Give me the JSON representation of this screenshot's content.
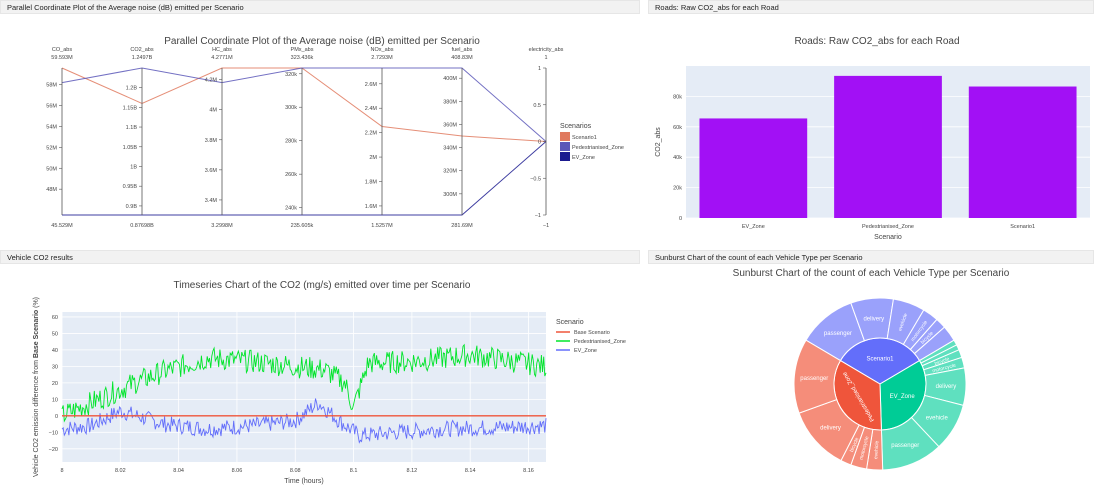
{
  "panels": {
    "parallel_tab": "Parallel Coordinate Plot of the Average noise (dB) emitted per Scenario",
    "bar_tab": "Roads: Raw CO2_abs for each Road",
    "ts_tab": "Vehicle CO2 results",
    "sun_tab": "Sunburst Chart of the count of each Vehicle Type per Scenario"
  },
  "colors": {
    "Scenario1": "#e07a5f",
    "Pedestrianised_Zone": "#5b57b8",
    "EV_Zone": "#1b1a8f",
    "bar": "#a210f5",
    "base": "#ef553b",
    "ped_line": "#00e52a",
    "ev_line": "#636efa",
    "plot_bg": "#e5ecf6"
  },
  "chart_data": [
    {
      "type": "parallel",
      "title": "Parallel Coordinate Plot of the Average noise (dB) emitted per Scenario",
      "legend_title": "Scenarios",
      "legend": [
        "Scenario1",
        "Pedestrianised_Zone",
        "EV_Zone"
      ],
      "axes": [
        {
          "name": "CO_abs",
          "top": "59.593M",
          "bottom": "45.529M",
          "range": [
            45.529,
            59.593
          ],
          "ticks": [
            "58M",
            "56M",
            "54M",
            "52M",
            "50M",
            "48M"
          ],
          "tick_values": [
            58,
            56,
            54,
            52,
            50,
            48
          ]
        },
        {
          "name": "CO2_abs",
          "top": "1.2497B",
          "bottom": "0.87698B",
          "range": [
            0.87698,
            1.2497
          ],
          "ticks": [
            "1.2B",
            "1.15B",
            "1.1B",
            "1.05B",
            "1B",
            "0.95B",
            "0.9B"
          ],
          "tick_values": [
            1.2,
            1.15,
            1.1,
            1.05,
            1.0,
            0.95,
            0.9
          ]
        },
        {
          "name": "HC_abs",
          "top": "4.2771M",
          "bottom": "3.2998M",
          "range": [
            3.2998,
            4.2771
          ],
          "ticks": [
            "4.2M",
            "4M",
            "3.8M",
            "3.6M",
            "3.4M"
          ],
          "tick_values": [
            4.2,
            4.0,
            3.8,
            3.6,
            3.4
          ]
        },
        {
          "name": "PMx_abs",
          "top": "323.436k",
          "bottom": "235.605k",
          "range": [
            235.605,
            323.436
          ],
          "ticks": [
            "320k",
            "300k",
            "280k",
            "260k",
            "240k"
          ],
          "tick_values": [
            320,
            300,
            280,
            260,
            240
          ]
        },
        {
          "name": "NOx_abs",
          "top": "2.7293M",
          "bottom": "1.5257M",
          "range": [
            1.5257,
            2.7293
          ],
          "ticks": [
            "2.6M",
            "2.4M",
            "2.2M",
            "2M",
            "1.8M",
            "1.6M"
          ],
          "tick_values": [
            2.6,
            2.4,
            2.2,
            2.0,
            1.8,
            1.6
          ]
        },
        {
          "name": "fuel_abs",
          "top": "408.83M",
          "bottom": "281.69M",
          "range": [
            281.69,
            408.83
          ],
          "ticks": [
            "400M",
            "380M",
            "360M",
            "340M",
            "320M",
            "300M"
          ],
          "tick_values": [
            400,
            380,
            360,
            340,
            320,
            300
          ]
        },
        {
          "name": "electricity_abs",
          "top": "1",
          "bottom": "−1",
          "range": [
            -1,
            1
          ],
          "ticks": [
            "1",
            "0.5",
            "0",
            "−0.5",
            "−1"
          ],
          "tick_values": [
            1,
            0.5,
            0,
            -0.5,
            -1
          ]
        }
      ],
      "series": [
        {
          "name": "Scenario1",
          "values": [
            59.593,
            1.16,
            4.2771,
            323.436,
            2.25,
            350,
            0
          ]
        },
        {
          "name": "Pedestrianised_Zone",
          "values": [
            58.2,
            1.2497,
            4.18,
            323.436,
            2.7293,
            408.83,
            0
          ]
        },
        {
          "name": "EV_Zone",
          "values": [
            45.529,
            0.87698,
            3.2998,
            235.605,
            1.5257,
            281.69,
            0
          ]
        }
      ]
    },
    {
      "type": "bar",
      "title": "Roads: Raw CO2_abs for each Road",
      "xlabel": "Scenario",
      "ylabel": "CO2_abs",
      "categories": [
        "EV_Zone",
        "Pedestrianised_Zone",
        "Scenario1"
      ],
      "values": [
        65500,
        93500,
        86500
      ],
      "ylim": [
        0,
        100000
      ],
      "yticks": [
        0,
        20000,
        40000,
        60000,
        80000
      ],
      "ytick_labels": [
        "0",
        "20k",
        "40k",
        "60k",
        "80k"
      ]
    },
    {
      "type": "line",
      "title": "Timeseries Chart of the CO2 (mg/s) emitted over time per Scenario",
      "xlabel": "Time (hours)",
      "ylabel_prefix": "Vehicle CO2 emission difference from ",
      "ylabel_bold": "Base Scenario",
      "ylabel_suffix": " (%)",
      "legend_title": "Scenario",
      "xlim": [
        8,
        8.166
      ],
      "ylim": [
        -28,
        63
      ],
      "xticks": [
        8,
        8.02,
        8.04,
        8.06,
        8.08,
        8.1,
        8.12,
        8.14,
        8.16
      ],
      "xtick_labels": [
        "8",
        "8.02",
        "8.04",
        "8.06",
        "8.08",
        "8.1",
        "8.12",
        "8.14",
        "8.16"
      ],
      "yticks": [
        -20,
        -10,
        0,
        10,
        20,
        30,
        40,
        50,
        60
      ],
      "ytick_labels": [
        "−20",
        "−10",
        "0",
        "10",
        "20",
        "30",
        "40",
        "50",
        "60"
      ],
      "series": [
        {
          "name": "Base Scenario",
          "anchors": [
            [
              8,
              0
            ],
            [
              8.166,
              0
            ]
          ],
          "noise": 0
        },
        {
          "name": "Pedestrianised_Zone",
          "anchors": [
            [
              8,
              0
            ],
            [
              8.01,
              8
            ],
            [
              8.025,
              20
            ],
            [
              8.035,
              27
            ],
            [
              8.05,
              35
            ],
            [
              8.065,
              33
            ],
            [
              8.08,
              30
            ],
            [
              8.09,
              28
            ],
            [
              8.097,
              20
            ],
            [
              8.1,
              5
            ],
            [
              8.105,
              32
            ],
            [
              8.12,
              33
            ],
            [
              8.14,
              37
            ],
            [
              8.155,
              33
            ],
            [
              8.166,
              30
            ]
          ],
          "noise": 7
        },
        {
          "name": "EV_Zone",
          "anchors": [
            [
              8,
              -8
            ],
            [
              8.01,
              -6
            ],
            [
              8.02,
              3
            ],
            [
              8.035,
              -5
            ],
            [
              8.05,
              -8
            ],
            [
              8.065,
              -6
            ],
            [
              8.08,
              -3
            ],
            [
              8.088,
              8
            ],
            [
              8.095,
              -3
            ],
            [
              8.102,
              -12
            ],
            [
              8.115,
              -10
            ],
            [
              8.13,
              -8
            ],
            [
              8.15,
              -7
            ],
            [
              8.166,
              -6
            ]
          ],
          "noise": 5
        }
      ]
    },
    {
      "type": "sunburst",
      "title": "Sunburst Chart of the count of each Vehicle Type per Scenario",
      "inner": [
        {
          "name": "Scenario1",
          "value": 33
        },
        {
          "name": "EV_Zone",
          "value": 33
        },
        {
          "name": "Pedestrianised_Zone",
          "value": 34
        }
      ],
      "outer": [
        {
          "parent": "Scenario1",
          "label": "passenger",
          "value": 11
        },
        {
          "parent": "Scenario1",
          "label": "delivery",
          "value": 8
        },
        {
          "parent": "Scenario1",
          "label": "evehicle",
          "value": 6
        },
        {
          "parent": "Scenario1",
          "label": "motorcycle",
          "value": 3
        },
        {
          "parent": "Scenario1",
          "label": "bicycle",
          "value": 2
        },
        {
          "parent": "Scenario1",
          "label": "",
          "value": 3
        },
        {
          "parent": "EV_Zone",
          "label": "",
          "value": 1
        },
        {
          "parent": "EV_Zone",
          "label": "",
          "value": 1
        },
        {
          "parent": "EV_Zone",
          "label": "bicycle",
          "value": 1.5
        },
        {
          "parent": "EV_Zone",
          "label": "motorcycle",
          "value": 2
        },
        {
          "parent": "EV_Zone",
          "label": "delivery",
          "value": 7
        },
        {
          "parent": "EV_Zone",
          "label": "evehicle",
          "value": 9
        },
        {
          "parent": "EV_Zone",
          "label": "passenger",
          "value": 11.5
        },
        {
          "parent": "Pedestrianised_Zone",
          "label": "evehicle",
          "value": 3
        },
        {
          "parent": "Pedestrianised_Zone",
          "label": "motorcycle",
          "value": 3
        },
        {
          "parent": "Pedestrianised_Zone",
          "label": "bicycle",
          "value": 2
        },
        {
          "parent": "Pedestrianised_Zone",
          "label": "delivery",
          "value": 12
        },
        {
          "parent": "Pedestrianised_Zone",
          "label": "passenger",
          "value": 14
        }
      ]
    }
  ]
}
